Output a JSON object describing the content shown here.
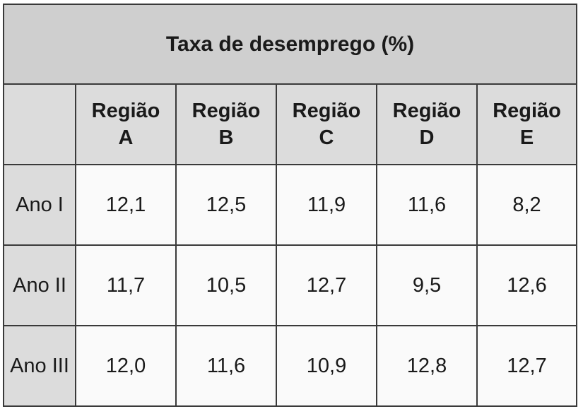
{
  "table": {
    "title": "Taxa de desemprego (%)",
    "columns": [
      "Região A",
      "Região B",
      "Região C",
      "Região D",
      "Região E"
    ],
    "rows": [
      [
        "Ano I",
        "12,1",
        "12,5",
        "11,9",
        "11,6",
        "8,2"
      ],
      [
        "Ano II",
        "11,7",
        "10,5",
        "12,7",
        "9,5",
        "12,6"
      ],
      [
        "Ano III",
        "12,0",
        "11,6",
        "10,9",
        "12,8",
        "12,7"
      ]
    ]
  }
}
